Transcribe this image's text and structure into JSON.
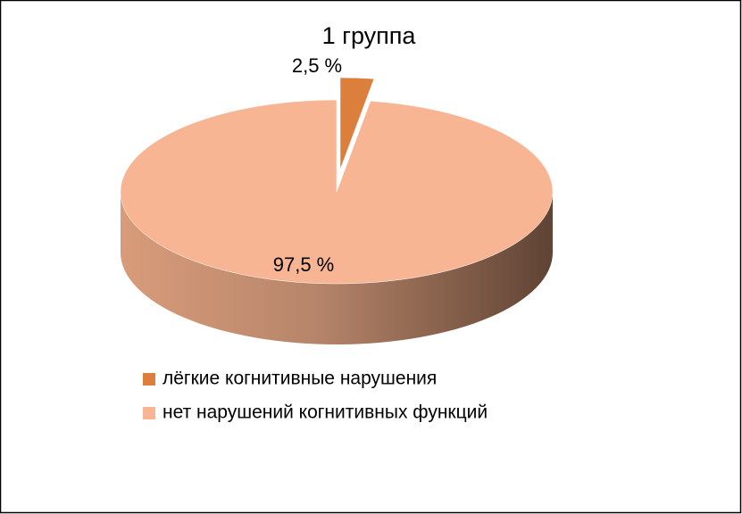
{
  "chart_data": {
    "type": "pie",
    "title": "1 группа",
    "categories": [
      "лёгкие когнитивные нарушения",
      "нет нарушений когнитивных функций"
    ],
    "values": [
      2.5,
      97.5
    ],
    "value_labels": [
      "2,5 %",
      "97,5 %"
    ],
    "colors": [
      "#dd7f3c",
      "#f7b593"
    ],
    "legend": "bottom"
  }
}
